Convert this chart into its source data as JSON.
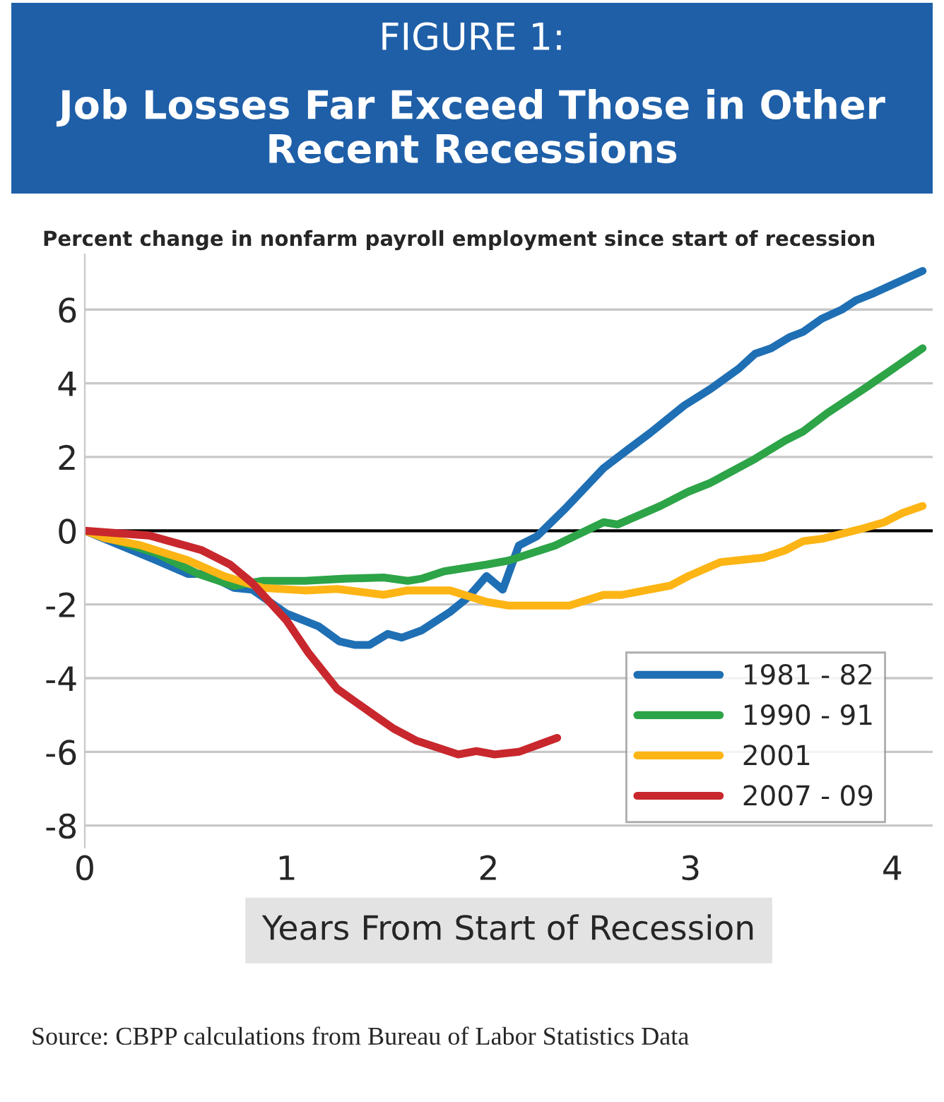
{
  "chart_data": {
    "type": "line",
    "title": "FIGURE 1:",
    "subtitle": "Job Losses Far Exceed Those in Other Recent Recessions",
    "ylabel": "Percent change in nonfarm payroll employment since start of recession",
    "xlabel": "Years From Start of Recession",
    "annotations": [
      "Source: CBPP calculations from Bureau of Labor Statistics Data"
    ],
    "xlim": [
      0,
      4.2
    ],
    "ylim": [
      -8.6,
      7.5
    ],
    "xticks": [
      0,
      1,
      2,
      3,
      4
    ],
    "yticks": [
      -8,
      -6,
      -4,
      -2,
      0,
      2,
      4,
      6
    ],
    "grid": "y",
    "legend": "bottom right",
    "marker": "none",
    "line_style": "solid",
    "series": [
      {
        "name": "1981 - 82",
        "color": "#1f6fb4",
        "x": [
          0,
          0.35,
          0.51,
          0.6,
          0.74,
          0.83,
          1.0,
          1.16,
          1.26,
          1.34,
          1.41,
          1.5,
          1.57,
          1.67,
          1.81,
          1.9,
          1.99,
          2.07,
          2.15,
          2.24,
          2.38,
          2.57,
          2.69,
          2.8,
          2.97,
          3.1,
          3.24,
          3.32,
          3.4,
          3.49,
          3.56,
          3.65,
          3.75,
          3.82,
          3.91,
          4.05,
          4.15
        ],
        "values": [
          0,
          -0.79,
          -1.17,
          -1.17,
          -1.55,
          -1.6,
          -2.25,
          -2.6,
          -3.0,
          -3.1,
          -3.1,
          -2.8,
          -2.9,
          -2.7,
          -2.2,
          -1.8,
          -1.23,
          -1.6,
          -0.4,
          -0.15,
          0.6,
          1.7,
          2.2,
          2.65,
          3.4,
          3.85,
          4.4,
          4.8,
          4.95,
          5.25,
          5.4,
          5.75,
          6.0,
          6.25,
          6.45,
          6.8,
          7.05
        ]
      },
      {
        "name": "1990 - 91",
        "color": "#2ca447",
        "x": [
          0,
          0.35,
          0.56,
          0.74,
          0.88,
          1.09,
          1.29,
          1.48,
          1.6,
          1.67,
          1.78,
          1.99,
          2.1,
          2.33,
          2.57,
          2.64,
          2.85,
          2.99,
          3.1,
          3.32,
          3.47,
          3.56,
          3.68,
          3.86,
          4.15
        ],
        "values": [
          0,
          -0.6,
          -1.17,
          -1.5,
          -1.36,
          -1.36,
          -1.3,
          -1.27,
          -1.36,
          -1.3,
          -1.1,
          -0.92,
          -0.81,
          -0.4,
          0.23,
          0.17,
          0.67,
          1.06,
          1.3,
          1.95,
          2.45,
          2.7,
          3.2,
          3.85,
          4.95
        ]
      },
      {
        "name": "2001",
        "color": "#fdb515",
        "x": [
          0,
          0.1,
          0.28,
          0.51,
          0.69,
          0.88,
          1.09,
          1.25,
          1.48,
          1.6,
          1.81,
          1.99,
          2.1,
          2.4,
          2.57,
          2.66,
          2.9,
          2.99,
          3.15,
          3.36,
          3.47,
          3.56,
          3.65,
          3.84,
          3.96,
          4.05,
          4.15
        ],
        "values": [
          0,
          -0.2,
          -0.4,
          -0.8,
          -1.23,
          -1.55,
          -1.62,
          -1.58,
          -1.74,
          -1.62,
          -1.62,
          -1.93,
          -2.03,
          -2.03,
          -1.74,
          -1.74,
          -1.49,
          -1.23,
          -0.85,
          -0.73,
          -0.53,
          -0.28,
          -0.22,
          0.04,
          0.23,
          0.48,
          0.67
        ]
      },
      {
        "name": "2007 - 09",
        "color": "#c8282d",
        "x": [
          0,
          0.32,
          0.58,
          0.72,
          0.83,
          1.0,
          1.11,
          1.25,
          1.43,
          1.53,
          1.64,
          1.85,
          1.94,
          2.03,
          2.15,
          2.34
        ],
        "values": [
          0,
          -0.13,
          -0.53,
          -0.92,
          -1.42,
          -2.44,
          -3.33,
          -4.29,
          -4.99,
          -5.37,
          -5.69,
          -6.07,
          -5.98,
          -6.07,
          -6.0,
          -5.62
        ]
      }
    ]
  }
}
